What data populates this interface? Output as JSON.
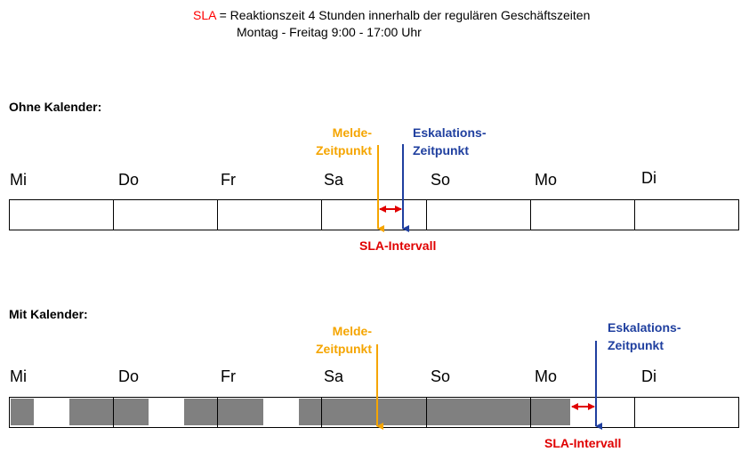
{
  "definition": {
    "term": "SLA",
    "line1": "= Reaktionszeit 4 Stunden innerhalb der regulären Geschäftszeiten",
    "line2": "Montag - Freitag 9:00 - 17:00 Uhr"
  },
  "sections": [
    {
      "title": "Ohne Kalender:",
      "days": [
        "Mi",
        "Do",
        "Fr",
        "Sa",
        "So",
        "Mo",
        "Di"
      ],
      "report_label": [
        "Melde-",
        "Zeitpunkt"
      ],
      "escalation_label": [
        "Eskalations-",
        "Zeitpunkt"
      ],
      "interval_label": "SLA-Intervall",
      "business_hours_shaded": false
    },
    {
      "title": "Mit Kalender:",
      "days": [
        "Mi",
        "Do",
        "Fr",
        "Sa",
        "So",
        "Mo",
        "Di"
      ],
      "report_label": [
        "Melde-",
        "Zeitpunkt"
      ],
      "escalation_label": [
        "Eskalations-",
        "Zeitpunkt"
      ],
      "interval_label": "SLA-Intervall",
      "business_hours_shaded": true
    }
  ],
  "colors": {
    "report": "#f5a500",
    "escalation": "#1f3f9f",
    "interval": "#e00000",
    "business_hours": "#808080"
  }
}
